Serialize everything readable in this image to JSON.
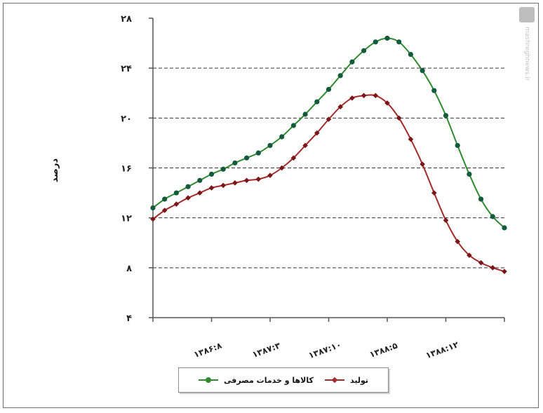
{
  "colors": {
    "series_1": "#2e8b2e",
    "series_1_marker": "#145a3c",
    "series_2": "#a52a2a",
    "series_2_marker": "#7a1518",
    "grid": "#333333",
    "axis": "#555555"
  },
  "legend": {
    "items": [
      {
        "label": "کالاها و خدمات مصرفی",
        "marker": "dot",
        "color": "#2e8b2e"
      },
      {
        "label": "تولید",
        "marker": "diamond",
        "color": "#a52a2a"
      }
    ]
  },
  "watermark": {
    "text": "mashreghnews.ir"
  },
  "chart_data": {
    "type": "line",
    "title": "",
    "xlabel": "",
    "ylabel": "درصد",
    "ylim": [
      4,
      28
    ],
    "yticks": [
      4,
      8,
      12,
      16,
      20,
      24,
      28
    ],
    "ytick_labels": [
      "۴",
      "۸",
      "۱۲",
      "۱۶",
      "۲۰",
      "۲۴",
      "۲۸"
    ],
    "grid": "horizontal dashed",
    "legend_position": "bottom",
    "x": [
      0,
      1,
      2,
      3,
      4,
      5,
      6,
      7,
      8,
      9,
      10,
      11,
      12,
      13,
      14,
      15,
      16,
      17,
      18,
      19,
      20,
      21,
      22,
      23,
      24,
      25,
      26,
      27,
      28,
      29,
      30
    ],
    "xticks": [
      {
        "x": 5,
        "label": "۱۳۸۶:۸"
      },
      {
        "x": 10,
        "label": "۱۳۸۷:۳"
      },
      {
        "x": 15,
        "label": "۱۳۸۷:۱۰"
      },
      {
        "x": 20,
        "label": "۱۳۸۸:۵"
      },
      {
        "x": 25,
        "label": "۱۳۸۸:۱۲"
      }
    ],
    "series": [
      {
        "name": "کالاها و خدمات مصرفی",
        "values": [
          12.8,
          13.5,
          14.0,
          14.5,
          15.0,
          15.5,
          15.9,
          16.4,
          16.8,
          17.2,
          17.8,
          18.5,
          19.4,
          20.3,
          21.3,
          22.3,
          23.4,
          24.5,
          25.4,
          26.1,
          26.4,
          26.1,
          25.1,
          23.8,
          22.2,
          20.2,
          17.8,
          15.5,
          13.5,
          12.1,
          11.2
        ]
      },
      {
        "name": "تولید",
        "values": [
          11.9,
          12.6,
          13.1,
          13.6,
          14.0,
          14.4,
          14.6,
          14.8,
          15.0,
          15.1,
          15.4,
          16.0,
          16.8,
          17.8,
          18.8,
          19.9,
          20.9,
          21.6,
          21.8,
          21.8,
          21.2,
          20.0,
          18.3,
          16.3,
          14.0,
          11.8,
          10.1,
          9.0,
          8.4,
          8.0,
          7.7
        ]
      }
    ]
  }
}
